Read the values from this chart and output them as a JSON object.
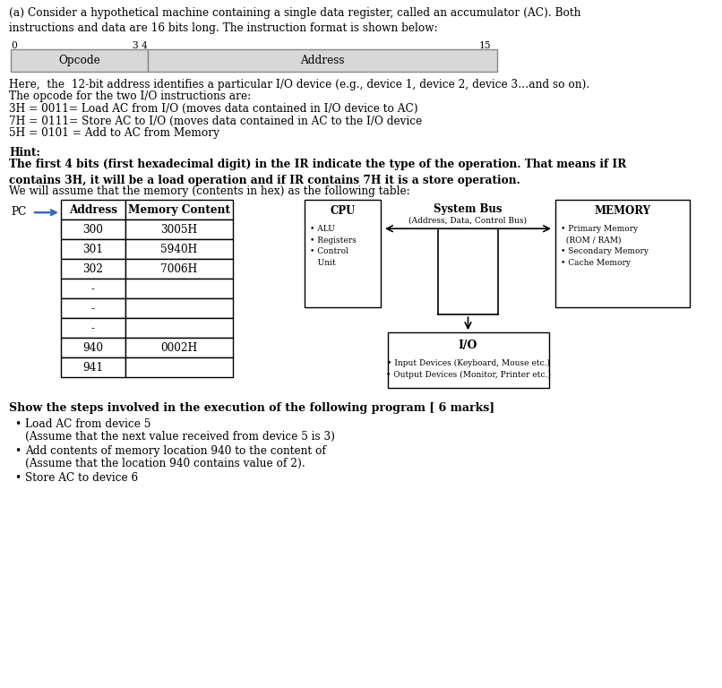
{
  "bg_color": "#ffffff",
  "text_color": "#000000",
  "para1": "(a) Consider a hypothetical machine containing a single data register, called an accumulator (AC). Both\ninstructions and data are 16 bits long. The instruction format is shown below:",
  "para2_line1": "Here,  the  12-bit address identifies a particular I/O device (e.g., device 1, device 2, device 3…and so on).",
  "para2_line2": "The opcode for the two I/O instructions are:",
  "para2_line3": "3H = 0011= Load AC from I/O (moves data contained in I/O device to AC)",
  "para2_line4": "7H = 0111= Store AC to I/O (moves data contained in AC to the I/O device",
  "para2_line5": "5H = 0101 = Add to AC from Memory",
  "hint_title": "Hint:",
  "hint_bold": "The first 4 bits (first hexadecimal digit) in the IR indicate the type of the operation. That means if IR\ncontains 3H, it will be a load operation and if IR contains 7H it is a store operation.",
  "hint_normal": "We will assume that the memory (contents in hex) as the following table:",
  "table_headers": [
    "Address",
    "Memory Content"
  ],
  "table_rows": [
    [
      "300",
      "3005H"
    ],
    [
      "301",
      "5940H"
    ],
    [
      "302",
      "7006H"
    ],
    [
      "-",
      ""
    ],
    [
      "-",
      ""
    ],
    [
      "-",
      ""
    ],
    [
      "940",
      "0002H"
    ],
    [
      "941",
      ""
    ]
  ],
  "cpu_label": "CPU",
  "bus_label": "System Bus",
  "bus_sublabel": "(Address, Data, Control Bus)",
  "memory_label": "MEMORY",
  "io_label": "I/O",
  "show_title": "Show the steps involved in the execution of the following program [ 6 marks]",
  "bullet1a": "Load AC from device 5",
  "bullet1b": "(Assume that the next value received from device 5 is 3)",
  "bullet2a": "Add contents of memory location 940 to the content of",
  "bullet2b": "(Assume that the location 940 contains value of 2).",
  "bullet3": "Store AC to device 6",
  "opcode_label": "Opcode",
  "address_label": "Address",
  "pc_label": "PC",
  "box_fill": "#d8d8d8",
  "box_border": "#888888"
}
